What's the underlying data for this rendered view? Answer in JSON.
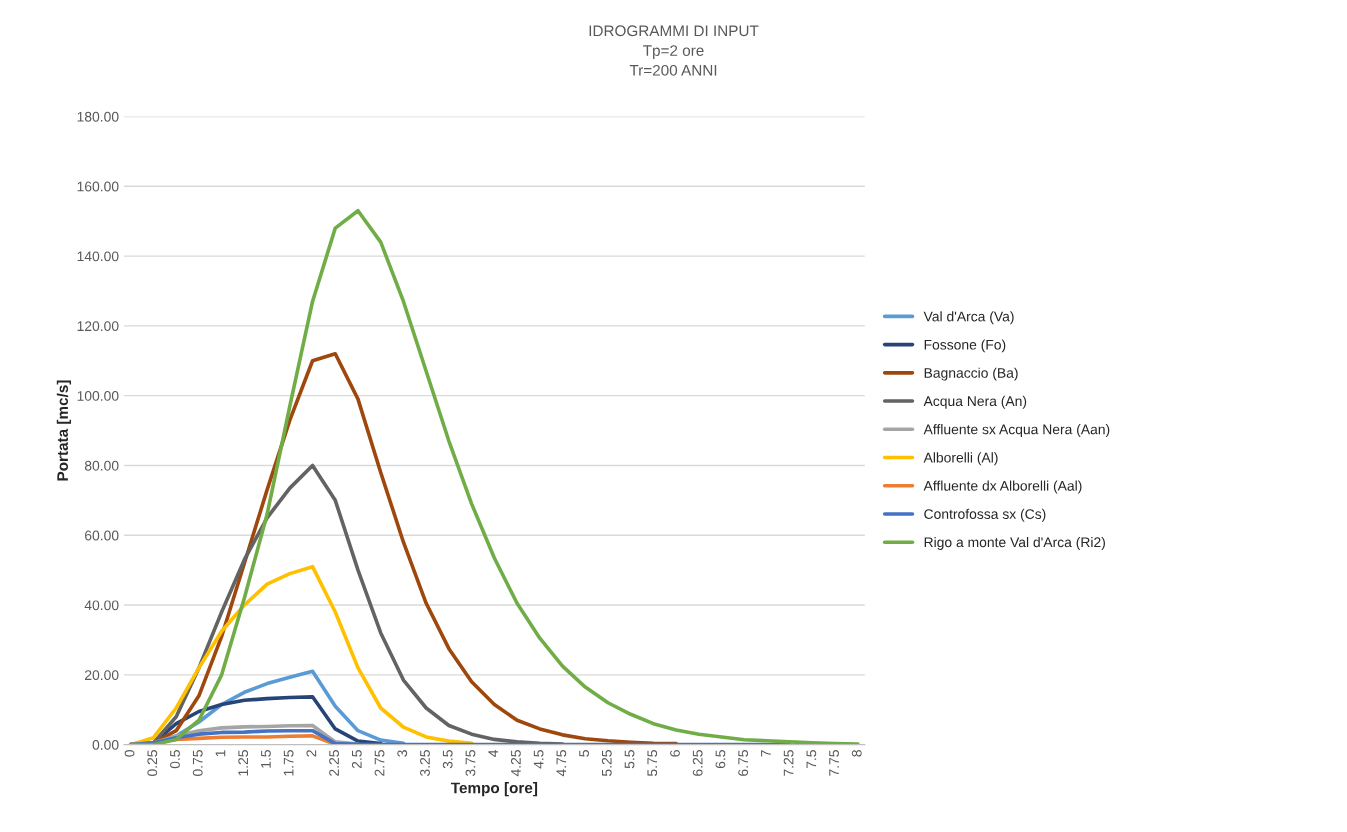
{
  "chart_data": {
    "type": "line",
    "title": "IDROGRAMMI DI INPUT\nTp=2 ore\nTr=200 ANNI",
    "xlabel": "Tempo [ore]",
    "ylabel": "Portata [mc/s]",
    "categories": [
      "0",
      "0.25",
      "0.5",
      "0.75",
      "1",
      "1.25",
      "1.5",
      "1.75",
      "2",
      "2.25",
      "2.5",
      "2.75",
      "3",
      "3.25",
      "3.5",
      "3.75",
      "4",
      "4.25",
      "4.5",
      "4.75",
      "5",
      "5.25",
      "5.5",
      "5.75",
      "6",
      "6.25",
      "6.5",
      "6.75",
      "7",
      "7.25",
      "7.5",
      "7.75",
      "8"
    ],
    "series": [
      {
        "name": "Val d'Arca (Va)",
        "color": "#5b9bd5",
        "values": [
          0,
          0.5,
          2.5,
          6.5,
          11.5,
          15,
          17.5,
          19.3,
          21,
          11,
          4,
          1.3,
          0.4,
          null,
          null,
          null,
          null,
          null,
          null,
          null,
          null,
          null,
          null,
          null,
          null,
          null,
          null,
          null,
          null,
          null,
          null,
          null,
          null
        ]
      },
      {
        "name": "Fossone (Fo)",
        "color": "#264478",
        "values": [
          0,
          0.5,
          6,
          9.5,
          11.5,
          12.7,
          13.2,
          13.5,
          13.7,
          4.5,
          1,
          0.3,
          null,
          null,
          null,
          null,
          null,
          null,
          null,
          null,
          null,
          null,
          null,
          null,
          null,
          null,
          null,
          null,
          null,
          null,
          null,
          null,
          null
        ]
      },
      {
        "name": "Bagnaccio (Ba)",
        "color": "#9e480e",
        "values": [
          0,
          0.5,
          4,
          14,
          31,
          52,
          73,
          93,
          110,
          112,
          99,
          78,
          58,
          40.5,
          27.5,
          18,
          11.5,
          7,
          4.5,
          2.8,
          1.7,
          1.1,
          0.7,
          0.4,
          0.3,
          null,
          null,
          null,
          null,
          null,
          null,
          null,
          null
        ]
      },
      {
        "name": "Acqua Nera (An)",
        "color": "#636363",
        "values": [
          0,
          0.5,
          8,
          22,
          38,
          53,
          65,
          73.5,
          80,
          70,
          50,
          32,
          18.5,
          10.5,
          5.5,
          3,
          1.5,
          0.8,
          0.4,
          0.2,
          null,
          null,
          null,
          null,
          null,
          null,
          null,
          null,
          null,
          null,
          null,
          null,
          null
        ]
      },
      {
        "name": "Affluente sx Acqua Nera (Aan)",
        "color": "#a5a5a5",
        "values": [
          0,
          0.5,
          2.5,
          4,
          4.8,
          5.1,
          5.2,
          5.4,
          5.5,
          0.8,
          0.2,
          null,
          null,
          null,
          null,
          null,
          null,
          null,
          null,
          null,
          null,
          null,
          null,
          null,
          null,
          null,
          null,
          null,
          null,
          null,
          null,
          null,
          null
        ]
      },
      {
        "name": "Alborelli (Al)",
        "color": "#ffc000",
        "values": [
          0,
          2,
          10.5,
          22,
          32.5,
          40,
          46,
          49,
          51,
          38,
          22,
          10.5,
          5,
          2.2,
          1,
          0.4,
          null,
          null,
          null,
          null,
          null,
          null,
          null,
          null,
          null,
          null,
          null,
          null,
          null,
          null,
          null,
          null,
          null
        ]
      },
      {
        "name": "Affluente dx Alborelli (Aal)",
        "color": "#ed7d31",
        "values": [
          0,
          0.5,
          1.5,
          1.8,
          2.1,
          2.2,
          2.2,
          2.4,
          2.5,
          0.1,
          null,
          null,
          null,
          null,
          null,
          null,
          null,
          null,
          null,
          null,
          null,
          null,
          null,
          null,
          null,
          null,
          null,
          null,
          null,
          null,
          null,
          null,
          null
        ]
      },
      {
        "name": "Controfossa sx (Cs)",
        "color": "#4472c4",
        "values": [
          0,
          0.5,
          2,
          3,
          3.5,
          3.6,
          3.9,
          4,
          4,
          0.3,
          0.1,
          0,
          0,
          0,
          0,
          0,
          0,
          0,
          0,
          0,
          0,
          0,
          0,
          0,
          0,
          0,
          0,
          0,
          0,
          0,
          null,
          null,
          null
        ]
      },
      {
        "name": "Rigo a monte Val d'Arca (Ri2)",
        "color": "#70ad47",
        "values": [
          0,
          0,
          1.5,
          7,
          20,
          42,
          66,
          97,
          127,
          148,
          153,
          144,
          127,
          107,
          87,
          69,
          53.5,
          40.5,
          30.5,
          22.5,
          16.5,
          12,
          8.7,
          6,
          4.2,
          3,
          2.2,
          1.4,
          1.1,
          0.8,
          0.5,
          0.3,
          0.2
        ]
      }
    ],
    "ylim": [
      0,
      180
    ],
    "yticks": [
      {
        "value": 0,
        "label": "0.00"
      },
      {
        "value": 20,
        "label": "20.00"
      },
      {
        "value": 40,
        "label": "40.00"
      },
      {
        "value": 60,
        "label": "60.00"
      },
      {
        "value": 80,
        "label": "80.00"
      },
      {
        "value": 100,
        "label": "100.00"
      },
      {
        "value": 120,
        "label": "120.00"
      },
      {
        "value": 140,
        "label": "140.00"
      },
      {
        "value": 160,
        "label": "160.00"
      },
      {
        "value": 180,
        "label": "180.00"
      }
    ],
    "grid": "y",
    "legend": "right",
    "marker": "none",
    "line_style": "solid"
  }
}
